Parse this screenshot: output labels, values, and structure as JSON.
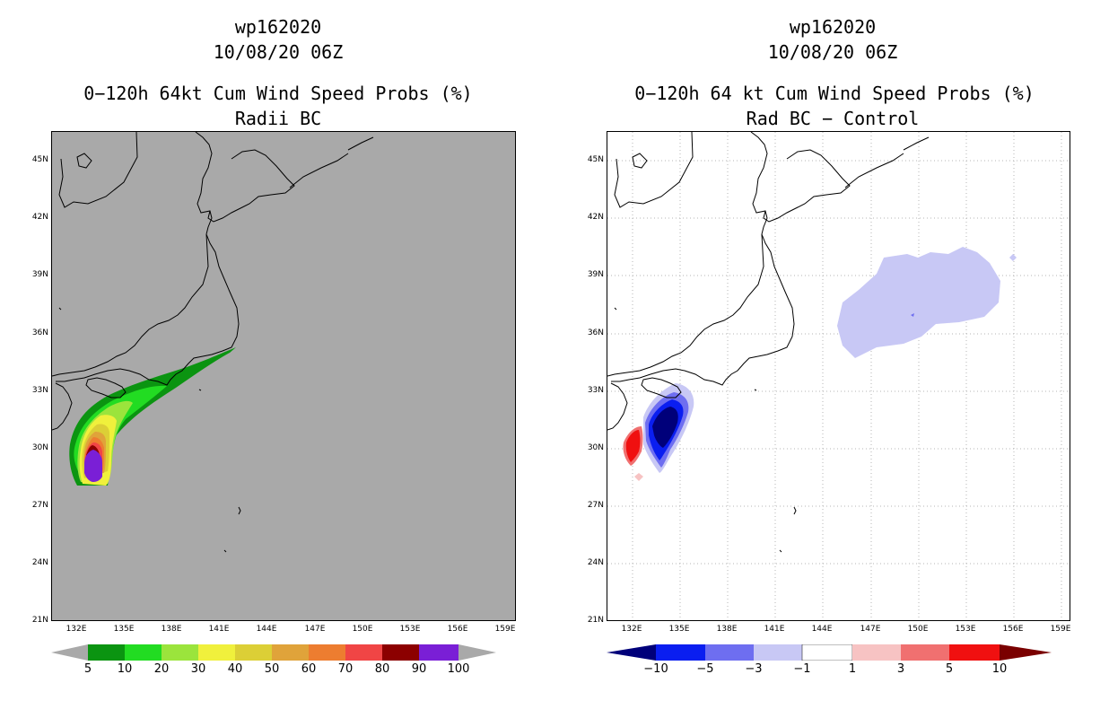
{
  "left": {
    "storm_id": "wp162020",
    "datetime": "10/08/20 06Z",
    "product": "0−120h 64kt Cum Wind Speed Probs (%)",
    "subtitle": "Radii BC",
    "background": "#a9a9a9",
    "colorbar": {
      "labels": [
        "5",
        "10",
        "20",
        "30",
        "40",
        "50",
        "60",
        "70",
        "80",
        "90",
        "100"
      ],
      "colors": [
        "#0b9411",
        "#22dc22",
        "#9be43c",
        "#f0f03c",
        "#dccf36",
        "#e0a33a",
        "#ed7d30",
        "#f04545",
        "#8c0000",
        "#7a1fd6"
      ]
    }
  },
  "right": {
    "storm_id": "wp162020",
    "datetime": "10/08/20 06Z",
    "product": "0−120h 64 kt Cum Wind Speed Probs (%)",
    "subtitle": "Rad BC − Control",
    "background": "#ffffff",
    "colorbar": {
      "labels": [
        "−10",
        "−5",
        "−3",
        "−1",
        "1",
        "3",
        "5",
        "10"
      ],
      "colors": [
        "#00007a",
        "#0a1ef0",
        "#6e6ef0",
        "#c8c8f5",
        "#ffffff",
        "#f7c3c3",
        "#f07070",
        "#f01010",
        "#7a0000"
      ]
    }
  },
  "axes": {
    "lat_labels": [
      "45N",
      "42N",
      "39N",
      "36N",
      "33N",
      "30N",
      "27N",
      "24N",
      "21N"
    ],
    "lon_labels": [
      "132E",
      "135E",
      "138E",
      "141E",
      "144E",
      "147E",
      "150E",
      "153E",
      "156E",
      "159E"
    ]
  }
}
